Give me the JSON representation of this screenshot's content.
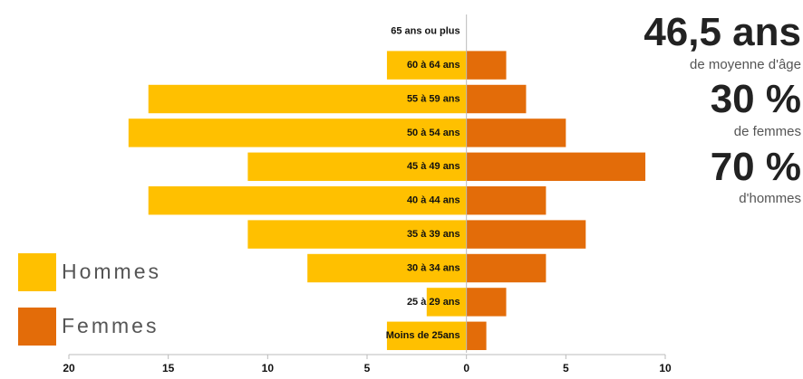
{
  "chart_data": {
    "type": "bar",
    "orientation": "horizontal",
    "categories": [
      "65 ans ou plus",
      "60 à 64 ans",
      "55 à 59 ans",
      "50 à 54 ans",
      "45 à 49 ans",
      "40 à 44 ans",
      "35 à 39 ans",
      "30 à 34 ans",
      "25 à 29 ans",
      "Moins de 25ans"
    ],
    "series": [
      {
        "name": "Hommes",
        "color": "#ffc000",
        "values": [
          0,
          -4,
          -16,
          -17,
          -11,
          -16,
          -11,
          -8,
          -2,
          -4
        ]
      },
      {
        "name": "Femmes",
        "color": "#e36c09",
        "values": [
          0,
          2,
          3,
          5,
          9,
          4,
          6,
          4,
          2,
          1
        ]
      }
    ],
    "xlim": [
      -20,
      10
    ],
    "xticks": [
      {
        "value": -20,
        "label": "20"
      },
      {
        "value": -15,
        "label": "15"
      },
      {
        "value": -10,
        "label": "10"
      },
      {
        "value": -5,
        "label": "5"
      },
      0,
      5,
      10
    ],
    "annotations": [
      "46,5 ans",
      "de moyenne d'âge",
      "30 %",
      "de femmes",
      "70 %",
      "d'hommes"
    ]
  }
}
